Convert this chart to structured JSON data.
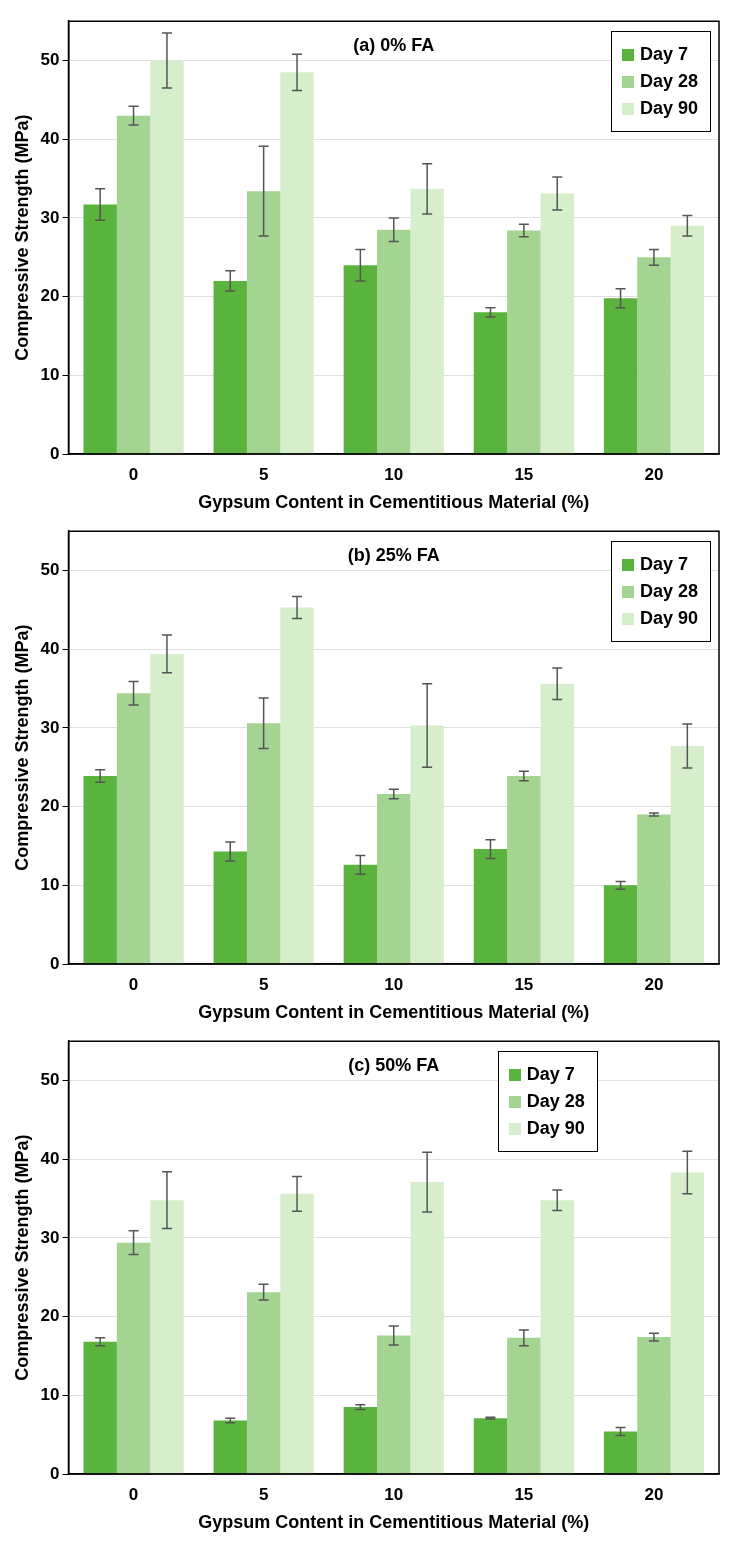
{
  "chart_data": [
    {
      "type": "bar",
      "title": "(a) 0% FA",
      "xlabel": "Gypsum Content in Cementitious Material (%)",
      "ylabel": "Compressive Strength (MPa)",
      "categories": [
        "0",
        "5",
        "10",
        "15",
        "20"
      ],
      "ylim": [
        0,
        55
      ],
      "yticks": [
        0,
        10,
        20,
        30,
        40,
        50
      ],
      "grid": "y",
      "legend": "top right",
      "series": [
        {
          "name": "Day 7",
          "color": "#5ab33c",
          "values": [
            31.7,
            22.0,
            24.0,
            18.0,
            19.8
          ],
          "errors": [
            2,
            1.3,
            2,
            0.6,
            1.2
          ]
        },
        {
          "name": "Day 28",
          "color": "#a3d492",
          "values": [
            43.0,
            33.4,
            28.5,
            28.4,
            25.0
          ],
          "errors": [
            1.2,
            5.7,
            1.5,
            0.8,
            1.0
          ]
        },
        {
          "name": "Day 90",
          "color": "#d6eecb",
          "values": [
            50.0,
            48.5,
            33.7,
            33.1,
            29.0
          ],
          "errors": [
            3.5,
            2.3,
            3.2,
            2.1,
            1.3
          ]
        }
      ]
    },
    {
      "type": "bar",
      "title": "(b) 25% FA",
      "xlabel": "Gypsum Content in Cementitious Material (%)",
      "ylabel": "Compressive Strength (MPa)",
      "categories": [
        "0",
        "5",
        "10",
        "15",
        "20"
      ],
      "ylim": [
        0,
        55
      ],
      "yticks": [
        0,
        10,
        20,
        30,
        40,
        50
      ],
      "grid": "y",
      "legend": "top right",
      "series": [
        {
          "name": "Day 7",
          "color": "#5ab33c",
          "values": [
            23.9,
            14.3,
            12.6,
            14.6,
            10.0
          ],
          "errors": [
            0.8,
            1.2,
            1.2,
            1.2,
            0.5
          ]
        },
        {
          "name": "Day 28",
          "color": "#a3d492",
          "values": [
            34.4,
            30.6,
            21.6,
            23.9,
            19.0
          ],
          "errors": [
            1.5,
            3.2,
            0.6,
            0.6,
            0.2
          ]
        },
        {
          "name": "Day 90",
          "color": "#d6eecb",
          "values": [
            39.4,
            45.3,
            30.3,
            35.6,
            27.7
          ],
          "errors": [
            2.4,
            1.4,
            5.3,
            2.0,
            2.8
          ]
        }
      ]
    },
    {
      "type": "bar",
      "title": "(c) 50% FA",
      "xlabel": "Gypsum Content in Cementitious Material (%)",
      "ylabel": "Compressive Strength (MPa)",
      "categories": [
        "0",
        "5",
        "10",
        "15",
        "20"
      ],
      "ylim": [
        0,
        55
      ],
      "yticks": [
        0,
        10,
        20,
        30,
        40,
        50
      ],
      "grid": "y",
      "legend": "top",
      "series": [
        {
          "name": "Day 7",
          "color": "#5ab33c",
          "values": [
            16.8,
            6.8,
            8.5,
            7.1,
            5.4
          ],
          "errors": [
            0.5,
            0.3,
            0.3,
            0.1,
            0.5
          ]
        },
        {
          "name": "Day 28",
          "color": "#a3d492",
          "values": [
            29.4,
            23.1,
            17.6,
            17.3,
            17.4
          ],
          "errors": [
            1.5,
            1.0,
            1.2,
            1.0,
            0.5
          ]
        },
        {
          "name": "Day 90",
          "color": "#d6eecb",
          "values": [
            34.8,
            35.6,
            37.1,
            34.8,
            38.3
          ],
          "errors": [
            3.6,
            2.2,
            3.8,
            1.3,
            2.7
          ]
        }
      ]
    }
  ]
}
